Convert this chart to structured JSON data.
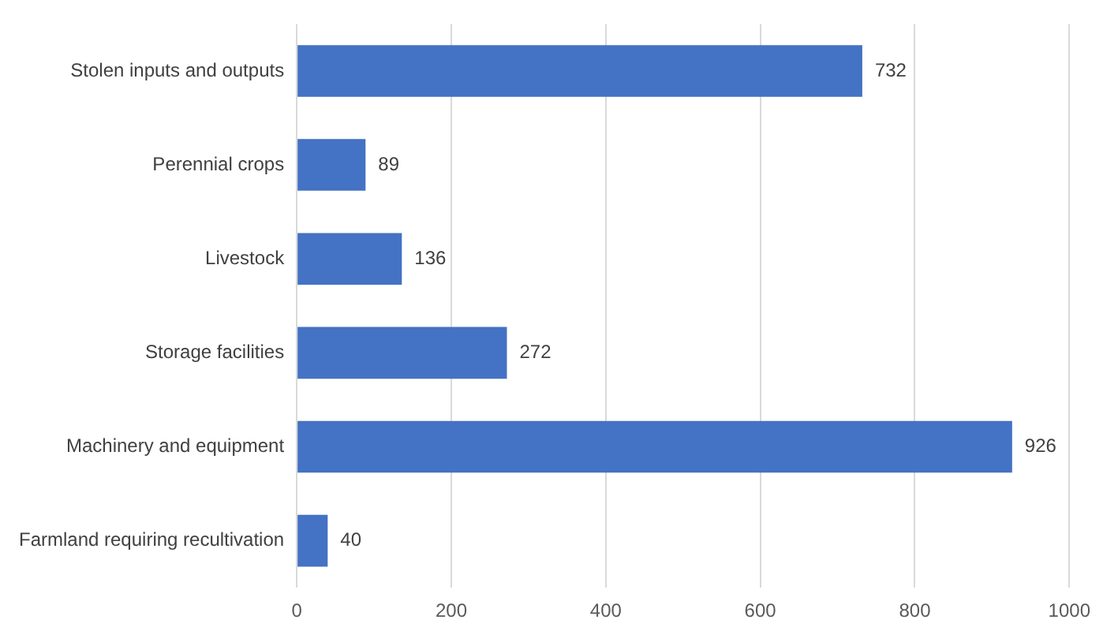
{
  "chart_data": {
    "type": "bar",
    "orientation": "horizontal",
    "categories": [
      "Stolen inputs and outputs",
      "Perennial crops",
      "Livestock",
      "Storage facilities",
      "Machinery and equipment",
      "Farmland requiring recultivation"
    ],
    "values": [
      732,
      89,
      136,
      272,
      926,
      40
    ],
    "color": "#4472c4",
    "xlim": [
      0,
      1000
    ],
    "xticks": [
      0,
      200,
      400,
      600,
      800,
      1000
    ],
    "grid": "x",
    "data_labels": true,
    "legend": false
  }
}
